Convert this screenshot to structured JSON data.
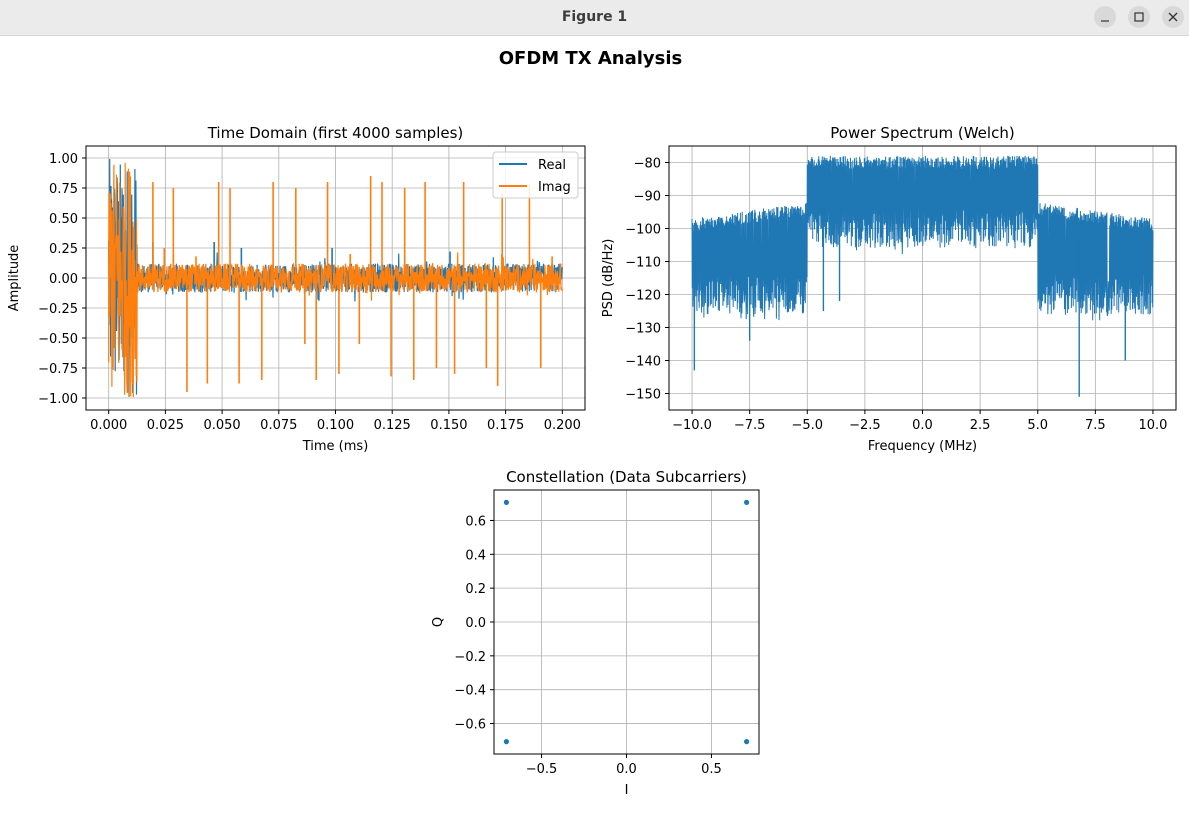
{
  "window": {
    "title": "Figure 1"
  },
  "figure": {
    "suptitle": "OFDM TX Analysis"
  },
  "colors": {
    "blue": "#1f77b4",
    "orange": "#ff7f0e",
    "grid": "#b0b0b0"
  },
  "icons": [
    "minimize-icon",
    "maximize-icon",
    "close-icon"
  ],
  "chart_data": [
    {
      "type": "line",
      "title": "Time Domain (first 4000 samples)",
      "xlabel": "Time (ms)",
      "ylabel": "Amplitude",
      "xlim": [
        -0.01,
        0.21
      ],
      "ylim": [
        -1.1,
        1.1
      ],
      "xticks": [
        0.0,
        0.025,
        0.05,
        0.075,
        0.1,
        0.125,
        0.15,
        0.175,
        0.2
      ],
      "xtick_labels": [
        "0.000",
        "0.025",
        "0.050",
        "0.075",
        "0.100",
        "0.125",
        "0.150",
        "0.175",
        "0.200"
      ],
      "yticks": [
        1.0,
        0.75,
        0.5,
        0.25,
        0.0,
        -0.25,
        -0.5,
        -0.75,
        -1.0
      ],
      "ytick_labels": [
        "1.00",
        "0.75",
        "0.50",
        "0.25",
        "0.00",
        "−0.25",
        "−0.50",
        "−0.75",
        "−1.00"
      ],
      "grid": true,
      "legend": "upper right",
      "series": [
        {
          "name": "Real",
          "color": "#1f77b4"
        },
        {
          "name": "Imag",
          "color": "#ff7f0e"
        }
      ],
      "preamble": {
        "x_range": [
          0.0,
          0.0125
        ],
        "amplitude": 1.0
      },
      "noise_amplitude": 0.12,
      "real_spikes": [
        {
          "x": 0.0195,
          "y": 0.3
        },
        {
          "x": 0.0465,
          "y": 0.3
        },
        {
          "x": 0.0585,
          "y": 0.25
        },
        {
          "x": 0.0985,
          "y": 0.25
        },
        {
          "x": 0.1505,
          "y": 0.22
        }
      ],
      "imag_spikes": [
        {
          "x": 0.0195,
          "y": 0.8
        },
        {
          "x": 0.0245,
          "y": 0.25
        },
        {
          "x": 0.0285,
          "y": 0.2
        },
        {
          "x": 0.0285,
          "y": 0.75
        },
        {
          "x": 0.0345,
          "y": -0.95
        },
        {
          "x": 0.0385,
          "y": 0.18
        },
        {
          "x": 0.0435,
          "y": -0.88
        },
        {
          "x": 0.0485,
          "y": 0.8
        },
        {
          "x": 0.0535,
          "y": 0.75
        },
        {
          "x": 0.0575,
          "y": -0.88
        },
        {
          "x": 0.0675,
          "y": -0.85
        },
        {
          "x": 0.0725,
          "y": 0.8
        },
        {
          "x": 0.0825,
          "y": 0.75
        },
        {
          "x": 0.0865,
          "y": -0.55
        },
        {
          "x": 0.0915,
          "y": -0.85
        },
        {
          "x": 0.0965,
          "y": 0.8
        },
        {
          "x": 0.1015,
          "y": -0.8
        },
        {
          "x": 0.1065,
          "y": 0.2
        },
        {
          "x": 0.1105,
          "y": -0.55
        },
        {
          "x": 0.1155,
          "y": 0.85
        },
        {
          "x": 0.1205,
          "y": 0.8
        },
        {
          "x": 0.1245,
          "y": -0.82
        },
        {
          "x": 0.1305,
          "y": 0.75
        },
        {
          "x": 0.1345,
          "y": -0.85
        },
        {
          "x": 0.1395,
          "y": 0.8
        },
        {
          "x": 0.1445,
          "y": -0.75
        },
        {
          "x": 0.1525,
          "y": -0.8
        },
        {
          "x": 0.1565,
          "y": 0.8
        },
        {
          "x": 0.1665,
          "y": -0.75
        },
        {
          "x": 0.1715,
          "y": -0.9
        },
        {
          "x": 0.1735,
          "y": 0.7
        },
        {
          "x": 0.1855,
          "y": 0.78
        },
        {
          "x": 0.1905,
          "y": -0.75
        },
        {
          "x": 0.1955,
          "y": 0.18
        }
      ]
    },
    {
      "type": "line",
      "title": "Power Spectrum (Welch)",
      "xlabel": "Frequency (MHz)",
      "ylabel": "PSD (dB/Hz)",
      "xlim": [
        -11.0,
        11.0
      ],
      "ylim": [
        -155,
        -75
      ],
      "xticks": [
        -10.0,
        -7.5,
        -5.0,
        -2.5,
        0.0,
        2.5,
        5.0,
        7.5,
        10.0
      ],
      "xtick_labels": [
        "−10.0",
        "−7.5",
        "−5.0",
        "−2.5",
        "0.0",
        "2.5",
        "5.0",
        "7.5",
        "10.0"
      ],
      "yticks": [
        -80,
        -90,
        -100,
        -110,
        -120,
        -130,
        -140,
        -150
      ],
      "ytick_labels": [
        "−80",
        "−90",
        "−100",
        "−110",
        "−120",
        "−130",
        "−140",
        "−150"
      ],
      "grid": true,
      "series": [
        {
          "color": "#1f77b4"
        }
      ],
      "band": {
        "in_band": {
          "f_range": [
            -5.0,
            5.0
          ],
          "top": -78,
          "typical_floor": -100
        },
        "out_band_top": [
          {
            "f": -10.0,
            "db": -97
          },
          {
            "f": -5.0,
            "db": -92
          },
          {
            "f": 5.0,
            "db": -92
          },
          {
            "f": 10.0,
            "db": -97
          }
        ],
        "out_band_floor": -120
      },
      "notable_dips": [
        {
          "f": -9.9,
          "db": -143
        },
        {
          "f": -7.5,
          "db": -134
        },
        {
          "f": -4.3,
          "db": -125
        },
        {
          "f": -3.6,
          "db": -122
        },
        {
          "f": 6.8,
          "db": -151
        },
        {
          "f": 8.8,
          "db": -140
        }
      ]
    },
    {
      "type": "scatter",
      "title": "Constellation (Data Subcarriers)",
      "xlabel": "I",
      "ylabel": "Q",
      "xlim": [
        -0.78,
        0.78
      ],
      "ylim": [
        -0.78,
        0.78
      ],
      "xticks": [
        -0.5,
        0.0,
        0.5
      ],
      "xtick_labels": [
        "−0.5",
        "0.0",
        "0.5"
      ],
      "yticks": [
        0.6,
        0.4,
        0.2,
        0.0,
        -0.2,
        -0.4,
        -0.6
      ],
      "ytick_labels": [
        "0.6",
        "0.4",
        "0.2",
        "0.0",
        "−0.2",
        "−0.4",
        "−0.6"
      ],
      "grid": true,
      "series": [
        {
          "color": "#1f77b4"
        }
      ],
      "points": [
        {
          "x": -0.707,
          "y": 0.707
        },
        {
          "x": 0.707,
          "y": 0.707
        },
        {
          "x": -0.707,
          "y": -0.707
        },
        {
          "x": 0.707,
          "y": -0.707
        }
      ]
    }
  ]
}
